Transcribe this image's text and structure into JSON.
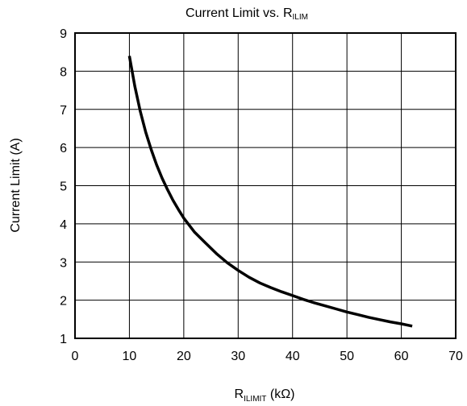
{
  "chart_data": {
    "type": "line",
    "title": {
      "main": "Current Limit vs. R",
      "sub": "ILIM"
    },
    "xlabel": {
      "main": "R",
      "sub": "ILIMIT",
      "unit": " (kΩ)"
    },
    "ylabel": "Current Limit (A)",
    "xlim": [
      0,
      70
    ],
    "ylim": [
      1,
      9
    ],
    "xticks": [
      0,
      10,
      20,
      30,
      40,
      50,
      60,
      70
    ],
    "yticks": [
      1,
      2,
      3,
      4,
      5,
      6,
      7,
      8,
      9
    ],
    "grid": true,
    "series": [
      {
        "color": "#000000",
        "x": [
          10,
          11,
          12,
          13,
          14,
          15,
          16,
          17,
          18,
          19,
          20,
          22,
          24,
          26,
          28,
          30,
          32,
          34,
          36,
          38,
          40,
          42,
          44,
          46,
          48,
          50,
          52,
          54,
          56,
          58,
          60,
          62
        ],
        "y": [
          8.4,
          7.6,
          6.95,
          6.4,
          5.95,
          5.55,
          5.2,
          4.9,
          4.62,
          4.38,
          4.15,
          3.78,
          3.5,
          3.22,
          2.98,
          2.78,
          2.6,
          2.45,
          2.33,
          2.22,
          2.12,
          2.02,
          1.93,
          1.85,
          1.77,
          1.69,
          1.62,
          1.55,
          1.49,
          1.43,
          1.38,
          1.32
        ]
      }
    ]
  }
}
